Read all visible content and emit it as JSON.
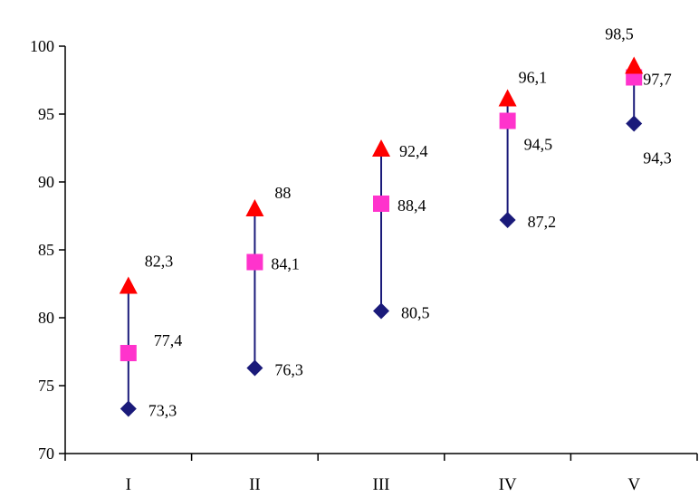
{
  "chart_data": {
    "type": "scatter",
    "title": "",
    "xlabel": "",
    "ylabel": "",
    "categories": [
      "I",
      "II",
      "III",
      "IV",
      "V"
    ],
    "ylim": [
      70,
      100
    ],
    "yticks": [
      70,
      75,
      80,
      85,
      90,
      95,
      100
    ],
    "ytick_labels": [
      "70",
      "75",
      "80",
      "85",
      "90",
      "95",
      "100"
    ],
    "grid": false,
    "legend": "none",
    "series": [
      {
        "marker": "diamond",
        "color": "#1a1a7a",
        "values": [
          73.3,
          76.3,
          80.5,
          87.2,
          94.3
        ],
        "labels": [
          "73,3",
          "76,3",
          "80,5",
          "87,2",
          "94,3"
        ]
      },
      {
        "marker": "square",
        "color": "#ff33cc",
        "values": [
          77.4,
          84.1,
          88.4,
          94.5,
          97.7
        ],
        "labels": [
          "77,4",
          "84,1",
          "88,4",
          "94,5",
          "97,7"
        ]
      },
      {
        "marker": "triangle",
        "color": "#ff0000",
        "values": [
          82.3,
          88,
          92.4,
          96.1,
          98.5
        ],
        "labels": [
          "82,3",
          "88",
          "92,4",
          "96,1",
          "98,5"
        ]
      }
    ],
    "range_line_color": "#1a1a7a"
  }
}
